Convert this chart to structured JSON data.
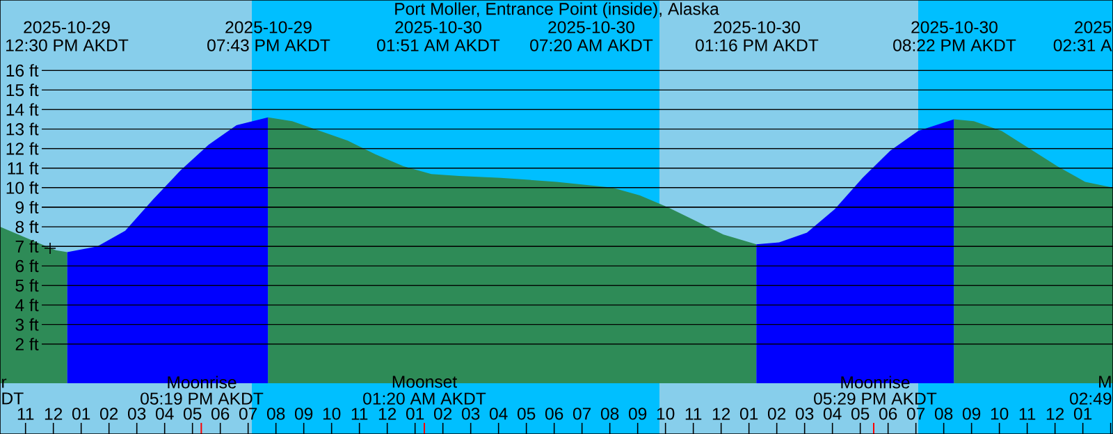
{
  "chart_data": {
    "type": "area",
    "title": "Port Moller, Entrance Point (inside), Alaska",
    "xlim": [
      "2025-10-29T10:05",
      "2025-10-31T02:05"
    ],
    "ylim": [
      -2.6,
      19.6
    ],
    "xticks": [
      {
        "value": "2025-10-29T11:00",
        "label": "11"
      },
      {
        "value": "2025-10-29T12:00",
        "label": "12"
      },
      {
        "value": "2025-10-29T13:00",
        "label": "01"
      },
      {
        "value": "2025-10-29T14:00",
        "label": "02"
      },
      {
        "value": "2025-10-29T15:00",
        "label": "03"
      },
      {
        "value": "2025-10-29T16:00",
        "label": "04"
      },
      {
        "value": "2025-10-29T17:00",
        "label": "05"
      },
      {
        "value": "2025-10-29T18:00",
        "label": "06"
      },
      {
        "value": "2025-10-29T19:00",
        "label": "07"
      },
      {
        "value": "2025-10-29T20:00",
        "label": "08"
      },
      {
        "value": "2025-10-29T21:00",
        "label": "09"
      },
      {
        "value": "2025-10-29T22:00",
        "label": "10"
      },
      {
        "value": "2025-10-29T23:00",
        "label": "11"
      },
      {
        "value": "2025-10-30T00:00",
        "label": "12"
      },
      {
        "value": "2025-10-30T01:00",
        "label": "01"
      },
      {
        "value": "2025-10-30T02:00",
        "label": "02"
      },
      {
        "value": "2025-10-30T03:00",
        "label": "03"
      },
      {
        "value": "2025-10-30T04:00",
        "label": "04"
      },
      {
        "value": "2025-10-30T05:00",
        "label": "05"
      },
      {
        "value": "2025-10-30T06:00",
        "label": "06"
      },
      {
        "value": "2025-10-30T07:00",
        "label": "07"
      },
      {
        "value": "2025-10-30T08:00",
        "label": "08"
      },
      {
        "value": "2025-10-30T09:00",
        "label": "09"
      },
      {
        "value": "2025-10-30T10:00",
        "label": "10"
      },
      {
        "value": "2025-10-30T11:00",
        "label": "11"
      },
      {
        "value": "2025-10-30T12:00",
        "label": "12"
      },
      {
        "value": "2025-10-30T13:00",
        "label": "01"
      },
      {
        "value": "2025-10-30T14:00",
        "label": "02"
      },
      {
        "value": "2025-10-30T15:00",
        "label": "03"
      },
      {
        "value": "2025-10-30T16:00",
        "label": "04"
      },
      {
        "value": "2025-10-30T17:00",
        "label": "05"
      },
      {
        "value": "2025-10-30T18:00",
        "label": "06"
      },
      {
        "value": "2025-10-30T19:00",
        "label": "07"
      },
      {
        "value": "2025-10-30T20:00",
        "label": "08"
      },
      {
        "value": "2025-10-30T21:00",
        "label": "09"
      },
      {
        "value": "2025-10-30T22:00",
        "label": "10"
      },
      {
        "value": "2025-10-30T23:00",
        "label": "11"
      },
      {
        "value": "2025-10-31T00:00",
        "label": "12"
      },
      {
        "value": "2025-10-31T01:00",
        "label": "01"
      },
      {
        "value": "2025-10-31T02:00",
        "label": null
      }
    ],
    "yticks": [
      {
        "value": 2,
        "label": "2 ft"
      },
      {
        "value": 3,
        "label": "3 ft"
      },
      {
        "value": 4,
        "label": "4 ft"
      },
      {
        "value": 5,
        "label": "5 ft"
      },
      {
        "value": 6,
        "label": "6 ft"
      },
      {
        "value": 7,
        "label": "7 ft"
      },
      {
        "value": 8,
        "label": "8 ft"
      },
      {
        "value": 9,
        "label": "9 ft"
      },
      {
        "value": 10,
        "label": "10 ft"
      },
      {
        "value": 11,
        "label": "11 ft"
      },
      {
        "value": 12,
        "label": "12 ft"
      },
      {
        "value": 13,
        "label": "13 ft"
      },
      {
        "value": 14,
        "label": "14 ft"
      },
      {
        "value": 15,
        "label": "15 ft"
      },
      {
        "value": 16,
        "label": "16 ft"
      }
    ],
    "grid": "y",
    "bands": [
      {
        "axis": "x",
        "from": "2025-10-29T10:05",
        "to": "2025-10-29T19:08",
        "color": "#87ceeb"
      },
      {
        "axis": "x",
        "from": "2025-10-29T19:08",
        "to": "2025-10-30T09:47",
        "color": "#00bfff"
      },
      {
        "axis": "x",
        "from": "2025-10-30T09:47",
        "to": "2025-10-30T19:05",
        "color": "#87ceeb"
      },
      {
        "axis": "x",
        "from": "2025-10-30T19:05",
        "to": "2025-10-31T02:05",
        "color": "#00bfff"
      }
    ],
    "series": [
      {
        "color": "#2e8b57",
        "x": [
          "2025-10-29T10:05",
          "2025-10-29T11:05",
          "2025-10-29T12:05",
          "2025-10-29T12:30"
        ],
        "values": [
          8.0,
          7.4,
          6.8,
          6.7
        ]
      },
      {
        "color": "#0000ff",
        "x": [
          "2025-10-29T12:30",
          "2025-10-29T13:35",
          "2025-10-29T14:35",
          "2025-10-29T15:35",
          "2025-10-29T16:35",
          "2025-10-29T17:35",
          "2025-10-29T18:35",
          "2025-10-29T19:43"
        ],
        "values": [
          6.7,
          7.0,
          7.8,
          9.4,
          10.9,
          12.2,
          13.2,
          13.6
        ]
      },
      {
        "color": "#2e8b57",
        "x": [
          "2025-10-29T19:43",
          "2025-10-29T20:35",
          "2025-10-29T21:35",
          "2025-10-29T22:35",
          "2025-10-29T23:35",
          "2025-10-30T00:35",
          "2025-10-30T01:35",
          "2025-10-30T02:35",
          "2025-10-30T04:05",
          "2025-10-30T06:05",
          "2025-10-30T08:05",
          "2025-10-30T09:05",
          "2025-10-30T10:05",
          "2025-10-30T11:05",
          "2025-10-30T12:05",
          "2025-10-30T13:16"
        ],
        "values": [
          13.6,
          13.4,
          12.9,
          12.4,
          11.7,
          11.1,
          10.7,
          10.6,
          10.5,
          10.3,
          10.0,
          9.6,
          9.0,
          8.3,
          7.6,
          7.1
        ]
      },
      {
        "color": "#0000ff",
        "x": [
          "2025-10-30T13:16",
          "2025-10-30T14:05",
          "2025-10-30T15:05",
          "2025-10-30T16:05",
          "2025-10-30T17:05",
          "2025-10-30T18:05",
          "2025-10-30T19:05",
          "2025-10-30T20:22"
        ],
        "values": [
          7.1,
          7.2,
          7.7,
          8.9,
          10.5,
          11.9,
          12.9,
          13.5
        ]
      },
      {
        "color": "#2e8b57",
        "x": [
          "2025-10-30T20:22",
          "2025-10-30T21:05",
          "2025-10-30T22:05",
          "2025-10-30T23:05",
          "2025-10-31T00:05",
          "2025-10-31T01:05",
          "2025-10-31T02:05"
        ],
        "values": [
          13.5,
          13.4,
          12.9,
          12.0,
          11.1,
          10.3,
          10.0
        ]
      },
      {
        "type": "scatter",
        "marker": "cross",
        "color": "#000000",
        "x": [
          "2025-10-29T11:53"
        ],
        "values": [
          6.9
        ]
      }
    ],
    "annotations": [
      "2025-10-29",
      "12:30 PM AKDT",
      "2025-10-29",
      "07:43 PM AKDT",
      "2025-10-30",
      "01:51 AM AKDT",
      "2025-10-30",
      "07:20 AM AKDT",
      "2025-10-30",
      "01:16 PM AKDT",
      "2025-10-30",
      "08:22 PM AKDT",
      "2025",
      "02:31 A",
      "r",
      "DT",
      "Moonrise",
      {
        "text": "05:19 PM AKDT",
        "x": "2025-10-29T17:19",
        "y": -2.6
      },
      "Moonset",
      {
        "text": "01:20 AM AKDT",
        "x": "2025-10-30T01:20",
        "y": -2.6
      },
      "Moonrise",
      {
        "text": "05:29 PM AKDT",
        "x": "2025-10-30T17:29",
        "y": -2.6
      },
      "M",
      "02:49"
    ]
  }
}
